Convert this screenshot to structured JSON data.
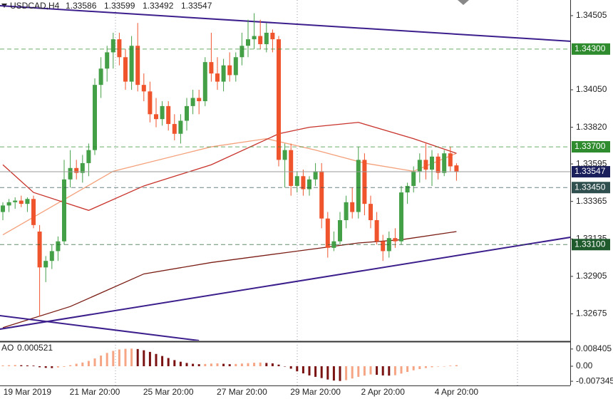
{
  "chart_data": {
    "type": "candlestick",
    "title": "USDCAD,H4",
    "categories": [
      null,
      null,
      null,
      null,
      "19 Mar 2019",
      null,
      null,
      null,
      null,
      null,
      null,
      null,
      null,
      null,
      null,
      "21 Mar 20:00",
      null,
      null,
      null,
      null,
      null,
      null,
      null,
      null,
      null,
      null,
      null,
      "25 Mar 20:00",
      null,
      null,
      null,
      null,
      null,
      null,
      null,
      null,
      null,
      null,
      null,
      "27 Mar 20:00",
      null,
      null,
      null,
      null,
      null,
      null,
      null,
      null,
      null,
      null,
      null,
      "29 Mar 20:00",
      null,
      null,
      null,
      null,
      null,
      null,
      null,
      null,
      null,
      null,
      "2 Apr 20:00",
      null,
      null,
      null,
      null,
      null,
      null,
      null,
      null,
      null,
      null,
      null,
      "4 Apr 20:00"
    ],
    "open": [
      1.333,
      1.3334,
      1.3336,
      1.3337,
      1.3335,
      1.3338,
      1.3318,
      1.3296,
      1.33,
      1.3306,
      1.3312,
      1.335,
      1.3357,
      1.3354,
      1.336,
      1.3368,
      1.3408,
      1.3418,
      1.3428,
      1.3436,
      1.3425,
      1.341,
      1.3432,
      1.3408,
      1.3404,
      1.339,
      1.3387,
      1.3395,
      1.3384,
      1.3378,
      1.3386,
      1.3395,
      1.34,
      1.3398,
      1.3422,
      1.3415,
      1.341,
      1.342,
      1.3414,
      1.3425,
      1.3432,
      1.3436,
      1.3438,
      1.3433,
      1.344,
      1.3436,
      1.3362,
      1.3368,
      1.3346,
      1.3352,
      1.3344,
      1.335,
      1.3355,
      1.3326,
      1.3308,
      1.3312,
      1.3325,
      1.3336,
      1.333,
      1.3362,
      1.3335,
      1.3325,
      1.3312,
      1.3306,
      1.3314,
      1.3312,
      1.3342,
      1.3346,
      1.3355,
      1.3362,
      1.3356,
      1.3364,
      1.3354,
      1.3366,
      1.33586
    ],
    "high": [
      1.3336,
      1.3338,
      1.3339,
      1.334,
      1.3339,
      1.334,
      1.3322,
      1.3303,
      1.331,
      1.3315,
      1.3362,
      1.3368,
      1.3362,
      1.3365,
      1.3372,
      1.3412,
      1.3425,
      1.3432,
      1.344,
      1.344,
      1.343,
      1.3438,
      1.3446,
      1.3415,
      1.341,
      1.34,
      1.3398,
      1.3398,
      1.339,
      1.339,
      1.34,
      1.3405,
      1.3405,
      1.3425,
      1.344,
      1.3425,
      1.3424,
      1.3428,
      1.3428,
      1.344,
      1.3448,
      1.3452,
      1.3448,
      1.3446,
      1.3442,
      1.3438,
      1.3372,
      1.3372,
      1.3355,
      1.3356,
      1.3352,
      1.336,
      1.336,
      1.333,
      1.3318,
      1.333,
      1.334,
      1.3345,
      1.337,
      1.3366,
      1.334,
      1.333,
      1.3316,
      1.3318,
      1.332,
      1.3346,
      1.3348,
      1.3358,
      1.3366,
      1.3372,
      1.3368,
      1.3366,
      1.3368,
      1.337,
      1.33599
    ],
    "low": [
      1.3325,
      1.333,
      1.3332,
      1.3333,
      1.333,
      1.332,
      1.3266,
      1.3287,
      1.3295,
      1.33,
      1.331,
      1.3345,
      1.335,
      1.3348,
      1.3352,
      1.3365,
      1.34,
      1.341,
      1.3418,
      1.342,
      1.3405,
      1.3405,
      1.3404,
      1.3398,
      1.3385,
      1.3382,
      1.3383,
      1.338,
      1.3374,
      1.3372,
      1.338,
      1.339,
      1.339,
      1.3395,
      1.341,
      1.3405,
      1.3404,
      1.341,
      1.341,
      1.342,
      1.3425,
      1.343,
      1.343,
      1.3428,
      1.3428,
      1.3358,
      1.3345,
      1.334,
      1.3342,
      1.334,
      1.334,
      1.3346,
      1.332,
      1.3302,
      1.3306,
      1.331,
      1.332,
      1.3326,
      1.3326,
      1.3328,
      1.332,
      1.331,
      1.33,
      1.3302,
      1.3308,
      1.331,
      1.3335,
      1.3342,
      1.3348,
      1.335,
      1.3346,
      1.335,
      1.3352,
      1.3355,
      1.33492
    ],
    "close": [
      1.3334,
      1.3336,
      1.3337,
      1.3335,
      1.3338,
      1.3322,
      1.3296,
      1.33,
      1.3306,
      1.3312,
      1.335,
      1.3357,
      1.3354,
      1.336,
      1.3368,
      1.3408,
      1.3418,
      1.3428,
      1.3436,
      1.3425,
      1.341,
      1.3432,
      1.3408,
      1.3404,
      1.339,
      1.3387,
      1.3395,
      1.3384,
      1.3378,
      1.3386,
      1.3395,
      1.34,
      1.3398,
      1.3422,
      1.3415,
      1.341,
      1.342,
      1.3414,
      1.3425,
      1.3432,
      1.3436,
      1.3438,
      1.3433,
      1.344,
      1.3436,
      1.3362,
      1.3368,
      1.3346,
      1.3352,
      1.3344,
      1.335,
      1.3355,
      1.3326,
      1.3308,
      1.3312,
      1.3325,
      1.3336,
      1.333,
      1.3362,
      1.3335,
      1.3325,
      1.3312,
      1.3306,
      1.3314,
      1.3312,
      1.3342,
      1.3346,
      1.3355,
      1.3362,
      1.3356,
      1.3364,
      1.3354,
      1.3366,
      1.3358,
      1.33547
    ],
    "up_color": "#43a047",
    "down_color": "#f0542d",
    "ylim": [
      1.32511,
      1.34601
    ],
    "yticks": [
      1.34505,
      {
        "value": 1.3405,
        "label": "1.34050"
      },
      {
        "value": 1.3382,
        "label": "1.33820"
      },
      1.33595,
      1.33365,
      1.33135,
      1.32905,
      1.32675
    ],
    "levels": [
      {
        "value": 1.343,
        "label": "1.34300",
        "color": "#2e8b2e"
      },
      {
        "value": 1.337,
        "label": "1.33700",
        "color": "#2e8b2e"
      },
      {
        "value": 1.3345,
        "label": "1.33450",
        "color": "#2f4f4f"
      },
      {
        "value": 1.331,
        "label": "1.33100",
        "color": "#1e5a2c"
      }
    ],
    "current_color": "#1b1f5c",
    "lines": [
      {
        "color": "#f4a07a",
        "x": [
          0,
          18,
          34,
          43,
          51,
          59,
          67,
          74
        ],
        "values": [
          1.3316,
          1.3355,
          1.337,
          1.3375,
          1.3368,
          1.336,
          1.3355,
          1.3366
        ]
      },
      {
        "color": "#c8322a",
        "x": [
          0,
          5,
          14,
          23,
          34,
          45,
          50,
          58,
          67,
          74
        ],
        "values": [
          1.3359,
          1.3342,
          1.3331,
          1.3346,
          1.3359,
          1.3378,
          1.3382,
          1.3385,
          1.3375,
          1.3366
        ]
      },
      {
        "color": "#7a1c14",
        "x": [
          0,
          11,
          23,
          34,
          46,
          58,
          65,
          74
        ],
        "values": [
          1.3259,
          1.3272,
          1.3292,
          1.3299,
          1.3305,
          1.3311,
          1.3313,
          1.3318
        ]
      },
      {
        "color": "#3c1e8c",
        "x": [
          -0.5,
          92.6
        ],
        "values": [
          1.34566,
          1.34348
        ]
      },
      {
        "color": "#3c1e8c",
        "x": [
          -0.5,
          32
        ],
        "values": [
          1.32664,
          1.32511
        ]
      },
      {
        "color": "#3c1e8c",
        "x": [
          -0.5,
          92.6
        ],
        "values": [
          1.32581,
          1.33145
        ]
      }
    ],
    "ao": {
      "name": "AO",
      "up_color": "#f6a584",
      "down_color": "#7b1212",
      "values": [
        0.0004,
        0.0005,
        0.0006,
        0.0005,
        0.0004,
        0.0003,
        -0.0005,
        -0.0008,
        -0.0009,
        -0.0006,
        -0.0003,
        0.0005,
        0.0012,
        0.0018,
        0.0026,
        0.0038,
        0.0052,
        0.0065,
        0.0075,
        0.0082,
        0.0085,
        0.0086,
        0.0084,
        0.0078,
        0.007,
        0.006,
        0.005,
        0.004,
        0.003,
        0.0022,
        0.0016,
        0.0012,
        0.001,
        0.0011,
        0.0013,
        0.0014,
        0.0012,
        0.001,
        0.0011,
        0.0013,
        0.0015,
        0.0017,
        0.0018,
        0.0016,
        0.0014,
        0.0008,
        0,
        -0.0012,
        -0.0025,
        -0.0035,
        -0.0045,
        -0.0052,
        -0.0058,
        -0.0065,
        -0.007,
        -0.0072,
        -0.0068,
        -0.006,
        -0.0052,
        -0.0046,
        -0.004,
        -0.0042,
        -0.0045,
        -0.0046,
        -0.0044,
        -0.0036,
        -0.0028,
        -0.002,
        -0.0014,
        -0.0009,
        -0.0005,
        -0.0002,
        0,
        0.0003,
        0.000521
      ],
      "ylim": [
        -0.0094,
        0.01149
      ],
      "yticks": [
        0.008405,
        {
          "value": 0,
          "label": "0.00"
        },
        -0.007345
      ]
    }
  }
}
